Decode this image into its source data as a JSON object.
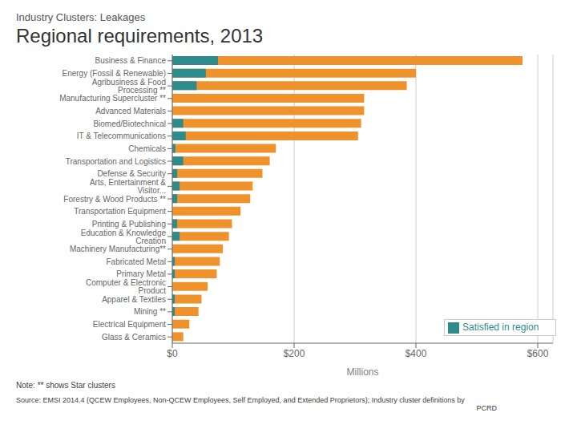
{
  "chart_data": {
    "type": "bar",
    "orientation": "horizontal",
    "stacked": false,
    "subtitle": "Industry Clusters: Leakages",
    "title": "Regional requirements, 2013",
    "xlabel": "Millions",
    "categories": [
      "Business & Finance",
      "Energy (Fossil & Renewable)",
      "Agribusiness & Food Processing **",
      "Manufacturing Supercluster **",
      "Advanced Materials",
      "Biomed/Biotechnical",
      "IT & Telecommunications",
      "Chemicals",
      "Transportation and Logistics",
      "Defense & Security",
      "Arts, Entertainment & Visitor...",
      "Forestry & Wood Products **",
      "Transportation Equipment",
      "Printing & Publishing",
      "Education & Knowledge Creation",
      "Machinery Manufacturing**",
      "Fabricated Metal",
      "Primary Metal",
      "Computer & Electronic Product",
      "Apparel & Textiles",
      "Mining **",
      "Electrical Equipment",
      "Glass & Ceramics"
    ],
    "series": [
      {
        "color": "#f0922b",
        "values": [
          575,
          400,
          385,
          315,
          315,
          310,
          305,
          170,
          160,
          148,
          132,
          128,
          112,
          98,
          93,
          83,
          78,
          73,
          58,
          48,
          43,
          28,
          18
        ]
      },
      {
        "name": "Satisfied in region",
        "color": "#2e8b8b",
        "values": [
          75,
          55,
          40,
          0,
          0,
          18,
          22,
          5,
          18,
          8,
          12,
          8,
          0,
          8,
          12,
          0,
          4,
          4,
          0,
          4,
          4,
          0,
          0
        ]
      }
    ],
    "xlim": [
      0,
      625
    ],
    "xticks": [
      {
        "value": 0,
        "label": "$0"
      },
      {
        "value": 200,
        "label": "$200"
      },
      {
        "value": 400,
        "label": "$400"
      },
      {
        "value": 600,
        "label": "$600"
      }
    ],
    "grid": true,
    "legend": "lower right",
    "annotations": [
      "Note: ** shows Star clusters",
      "Source: EMSI 2014.4 (QCEW Employees, Non-QCEW Employees, Self Employed, and Extended Proprietors); Industry cluster definitions by",
      "PCRD"
    ]
  }
}
